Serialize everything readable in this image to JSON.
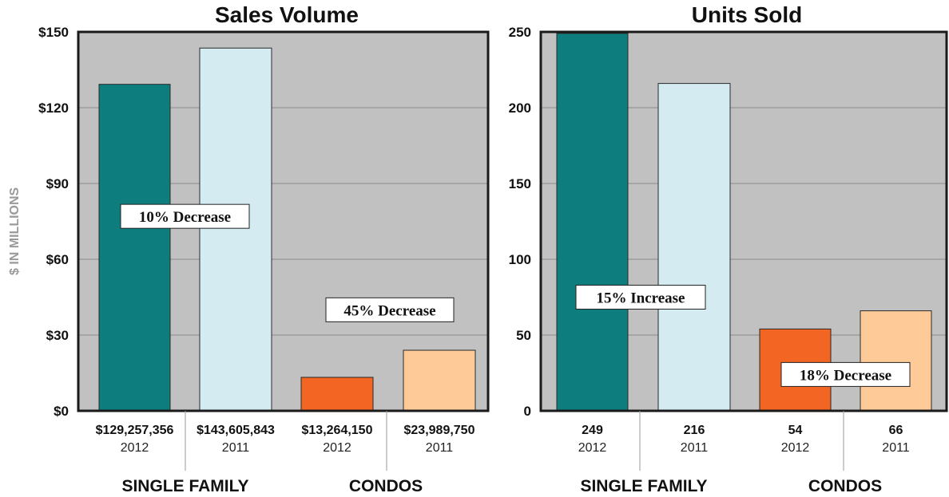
{
  "chart_data": [
    {
      "type": "bar",
      "title": "Sales Volume",
      "ylabel": "$ IN MILLIONS",
      "ylim": [
        0,
        150
      ],
      "yticks": [
        0,
        30,
        60,
        90,
        120,
        150
      ],
      "ytick_labels": [
        "$0",
        "$30",
        "$60",
        "$90",
        "$120",
        "$150"
      ],
      "grid": true,
      "categories": [
        "2012",
        "2011",
        "2012",
        "2011"
      ],
      "groups": [
        "SINGLE FAMILY",
        "CONDOS"
      ],
      "value_labels": [
        "$129,257,356",
        "$143,605,843",
        "$13,264,150",
        "$23,989,750"
      ],
      "values": [
        129.257356,
        143.605843,
        13.26415,
        23.98975
      ],
      "colors": [
        "#0e7d7d",
        "#d4ebf2",
        "#f26522",
        "#fdca98"
      ],
      "annotations": [
        {
          "text": "10% Decrease",
          "group": "SINGLE FAMILY",
          "y": 77
        },
        {
          "text": "45% Decrease",
          "group": "CONDOS",
          "y": 40
        }
      ]
    },
    {
      "type": "bar",
      "title": "Units Sold",
      "ylabel": "",
      "ylim": [
        0,
        250
      ],
      "yticks": [
        0,
        50,
        100,
        150,
        200,
        250
      ],
      "ytick_labels": [
        "0",
        "50",
        "100",
        "150",
        "200",
        "250"
      ],
      "grid": true,
      "categories": [
        "2012",
        "2011",
        "2012",
        "2011"
      ],
      "groups": [
        "SINGLE FAMILY",
        "CONDOS"
      ],
      "value_labels": [
        "249",
        "216",
        "54",
        "66"
      ],
      "values": [
        249,
        216,
        54,
        66
      ],
      "colors": [
        "#0e7d7d",
        "#d4ebf2",
        "#f26522",
        "#fdca98"
      ],
      "annotations": [
        {
          "text": "15% Increase",
          "group": "SINGLE FAMILY",
          "y": 75
        },
        {
          "text": "18% Decrease",
          "group": "CONDOS",
          "y": 24
        }
      ]
    }
  ]
}
